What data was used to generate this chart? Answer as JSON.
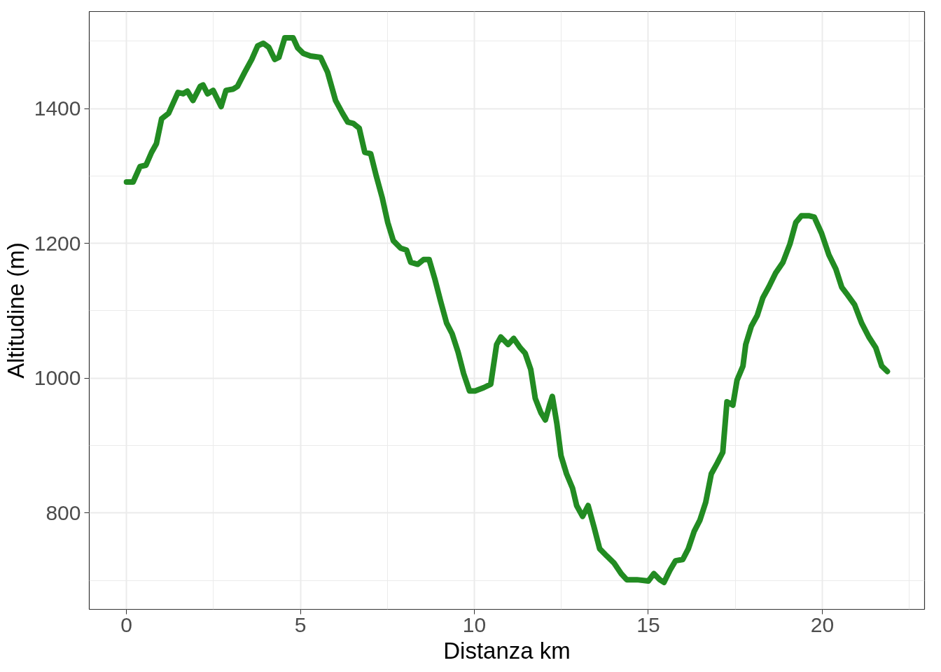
{
  "chart_data": {
    "type": "line",
    "xlabel": "Distanza km",
    "ylabel": "Altitudine (m)",
    "x": [
      0,
      0.19,
      0.39,
      0.56,
      0.72,
      0.86,
      1.01,
      1.21,
      1.48,
      1.63,
      1.75,
      1.91,
      2.12,
      2.2,
      2.33,
      2.49,
      2.72,
      2.86,
      3.07,
      3.19,
      3.4,
      3.6,
      3.77,
      3.93,
      4.09,
      4.26,
      4.38,
      4.55,
      4.79,
      4.92,
      5.08,
      5.29,
      5.58,
      5.78,
      6.01,
      6.21,
      6.36,
      6.52,
      6.69,
      6.85,
      7.02,
      7.18,
      7.35,
      7.51,
      7.67,
      7.88,
      8.05,
      8.17,
      8.37,
      8.54,
      8.7,
      8.87,
      9.03,
      9.2,
      9.36,
      9.53,
      9.69,
      9.86,
      10.02,
      10.27,
      10.47,
      10.64,
      10.76,
      10.97,
      11.13,
      11.32,
      11.46,
      11.62,
      11.75,
      11.91,
      12.04,
      12.16,
      12.24,
      12.37,
      12.49,
      12.65,
      12.82,
      12.94,
      13.11,
      13.27,
      13.44,
      13.6,
      13.81,
      14.01,
      14.22,
      14.38,
      14.67,
      15.0,
      15.16,
      15.33,
      15.45,
      15.62,
      15.78,
      15.99,
      16.15,
      16.32,
      16.48,
      16.65,
      16.81,
      16.98,
      17.14,
      17.26,
      17.43,
      17.55,
      17.72,
      17.8,
      17.96,
      18.13,
      18.29,
      18.46,
      18.66,
      18.87,
      19.07,
      19.24,
      19.4,
      19.61,
      19.77,
      19.98,
      20.19,
      20.39,
      20.56,
      20.72,
      20.93,
      21.13,
      21.34,
      21.54,
      21.71,
      21.87
    ],
    "series": [
      {
        "color": "#228b22",
        "values": [
          1291,
          1291,
          1314,
          1316,
          1335,
          1348,
          1385,
          1393,
          1424,
          1422,
          1426,
          1412,
          1433,
          1435,
          1422,
          1427,
          1403,
          1427,
          1429,
          1433,
          1454,
          1473,
          1493,
          1497,
          1491,
          1473,
          1476,
          1505,
          1505,
          1490,
          1482,
          1478,
          1476,
          1454,
          1412,
          1393,
          1380,
          1378,
          1371,
          1335,
          1333,
          1300,
          1268,
          1231,
          1204,
          1193,
          1190,
          1172,
          1169,
          1176,
          1176,
          1146,
          1114,
          1082,
          1066,
          1039,
          1007,
          981,
          981,
          986,
          991,
          1050,
          1061,
          1050,
          1059,
          1045,
          1037,
          1013,
          970,
          949,
          938,
          960,
          973,
          933,
          885,
          858,
          837,
          811,
          795,
          811,
          779,
          747,
          736,
          726,
          710,
          701,
          701,
          699,
          710,
          701,
          697,
          715,
          729,
          731,
          747,
          773,
          789,
          816,
          858,
          874,
          890,
          965,
          960,
          997,
          1018,
          1050,
          1077,
          1093,
          1119,
          1135,
          1156,
          1172,
          1199,
          1231,
          1241,
          1241,
          1239,
          1215,
          1183,
          1162,
          1135,
          1124,
          1109,
          1082,
          1061,
          1045,
          1018,
          1010
        ]
      }
    ],
    "xlim": [
      -1.07,
      22.94
    ],
    "ylim": [
      657,
      1544
    ],
    "xticks": [
      0,
      {
        "value": 2.5,
        "label": null
      },
      5,
      {
        "value": 7.5,
        "label": null
      },
      10,
      {
        "value": 12.5,
        "label": null
      },
      15,
      {
        "value": 17.5,
        "label": null
      },
      20,
      {
        "value": 22.5,
        "label": null
      }
    ],
    "yticks": [
      {
        "value": 700,
        "label": null
      },
      800,
      {
        "value": 900,
        "label": null
      },
      1000,
      {
        "value": 1100,
        "label": null
      },
      1200,
      {
        "value": 1300,
        "label": null
      },
      1400,
      {
        "value": 1500,
        "label": null
      }
    ],
    "grid": true,
    "line_style": "solid",
    "marker": "none"
  }
}
